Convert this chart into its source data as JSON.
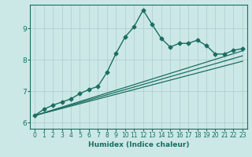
{
  "xlabel": "Humidex (Indice chaleur)",
  "ylabel": "",
  "background_color": "#cce8e6",
  "grid_color": "#aacccc",
  "line_color": "#1a6e62",
  "xlim": [
    -0.5,
    23.5
  ],
  "ylim": [
    5.8,
    9.75
  ],
  "yticks": [
    6,
    7,
    8,
    9
  ],
  "xticks": [
    0,
    1,
    2,
    3,
    4,
    5,
    6,
    7,
    8,
    9,
    10,
    11,
    12,
    13,
    14,
    15,
    16,
    17,
    18,
    19,
    20,
    21,
    22,
    23
  ],
  "series_main": {
    "x": [
      0,
      1,
      2,
      3,
      4,
      5,
      6,
      7,
      8,
      9,
      10,
      11,
      12,
      13,
      14,
      15,
      16,
      17,
      18,
      19,
      20,
      21,
      22,
      23
    ],
    "y": [
      6.22,
      6.42,
      6.55,
      6.65,
      6.75,
      6.92,
      7.05,
      7.15,
      7.6,
      8.2,
      8.72,
      9.05,
      9.58,
      9.12,
      8.68,
      8.4,
      8.52,
      8.52,
      8.62,
      8.45,
      8.18,
      8.18,
      8.3,
      8.35
    ],
    "marker": "D",
    "markersize": 2.5,
    "linewidth": 1.0
  },
  "trend_lines": [
    {
      "x": [
        0,
        23
      ],
      "y": [
        6.22,
        8.28
      ]
    },
    {
      "x": [
        0,
        23
      ],
      "y": [
        6.22,
        8.12
      ]
    },
    {
      "x": [
        0,
        23
      ],
      "y": [
        6.22,
        7.95
      ]
    }
  ]
}
